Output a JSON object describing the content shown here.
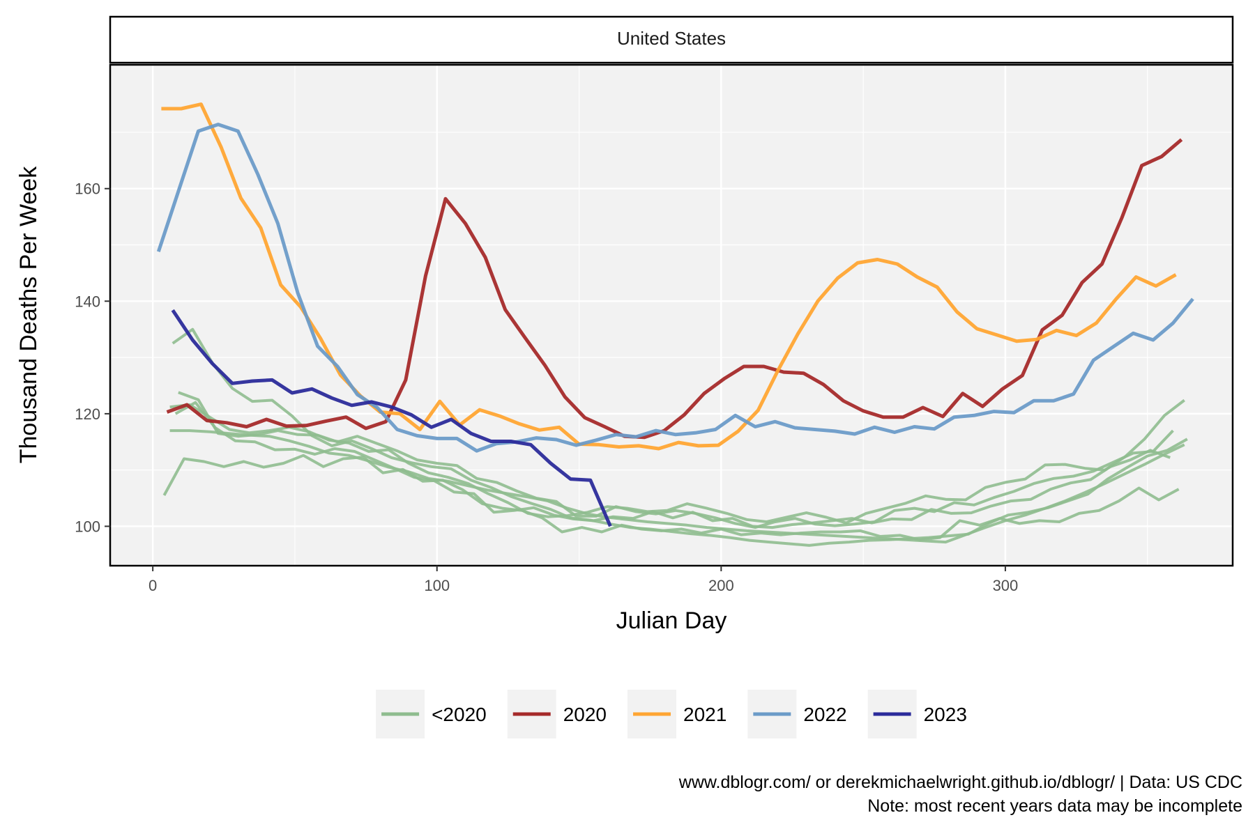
{
  "chart_data": {
    "type": "line",
    "facet_title": "United States",
    "xlabel": "Julian Day",
    "ylabel": "Thousand Deaths Per Week",
    "xlim": [
      -15,
      380
    ],
    "ylim": [
      93,
      182
    ],
    "x_ticks": [
      0,
      100,
      200,
      300
    ],
    "y_ticks": [
      100,
      120,
      140,
      160
    ],
    "grid": true,
    "legend_position": "bottom",
    "colors": {
      "lt2020": "#8fbc8f",
      "y2020": "#a52a2a",
      "y2021": "#ffa533",
      "y2022": "#6b9bc8",
      "y2023": "#2b2b9a",
      "panel_bg": "#f2f2f2",
      "grid": "#ffffff"
    },
    "legend": [
      {
        "label": "<2020",
        "color": "#8fbc8f"
      },
      {
        "label": "2020",
        "color": "#a52a2a"
      },
      {
        "label": "2021",
        "color": "#ffa533"
      },
      {
        "label": "2022",
        "color": "#6b9bc8"
      },
      {
        "label": "2023",
        "color": "#2b2b9a"
      }
    ],
    "series": [
      {
        "legend": "<2020",
        "color": "#8fbc8f",
        "opacity": 0.9,
        "width": 4,
        "x": [
          4,
          11,
          18,
          25,
          32,
          39,
          46,
          53,
          60,
          67,
          74,
          81,
          88,
          95,
          102,
          109,
          116,
          123,
          130,
          137,
          144,
          151,
          158,
          165,
          172,
          179,
          186,
          193,
          200,
          207,
          214,
          221,
          228,
          235,
          242,
          249,
          256,
          263,
          270,
          277,
          284,
          291,
          298,
          305,
          312,
          319,
          326,
          333,
          340,
          347,
          354,
          361
        ],
        "y": [
          105.5,
          112,
          111.5,
          110.6,
          111.5,
          110.5,
          111.2,
          112.6,
          110.6,
          112,
          112.3,
          109.5,
          110.1,
          108,
          108.2,
          106.5,
          104,
          103.2,
          102.8,
          101.5,
          99,
          99.8,
          99,
          100.2,
          99.5,
          99.2,
          99.5,
          98.8,
          99.5,
          98.5,
          98.8,
          98.5,
          98.8,
          99,
          99,
          99.2,
          98.2,
          98.4,
          97.6,
          98,
          101,
          100.2,
          101.4,
          100.5,
          101,
          100.8,
          102.3,
          102.8,
          104.5,
          106.8,
          104.7,
          106.6
        ]
      },
      {
        "legend": "<2020",
        "color": "#8fbc8f",
        "opacity": 0.9,
        "width": 4,
        "x": [
          6,
          13,
          20,
          27,
          34,
          41,
          48,
          55,
          62,
          69,
          76,
          83,
          90,
          97,
          104,
          111,
          118,
          125,
          132,
          139,
          146,
          153,
          160,
          167,
          174,
          181,
          188,
          195,
          202,
          209,
          216,
          223,
          230,
          237,
          244,
          251,
          258,
          265,
          272,
          279,
          286,
          293,
          300,
          307,
          314,
          321,
          328,
          335,
          342,
          349,
          356,
          363
        ],
        "y": [
          117,
          117,
          116.8,
          116.5,
          116.2,
          116,
          115.2,
          114.2,
          113,
          112.6,
          111.6,
          110.5,
          109.7,
          108.5,
          108,
          107.2,
          106.4,
          105.8,
          105.2,
          104.5,
          103.2,
          102.2,
          101.6,
          101.2,
          100.8,
          100.5,
          100.2,
          99.8,
          99.5,
          99.2,
          99,
          98.8,
          98.6,
          98.4,
          98.2,
          98,
          97.8,
          97.6,
          97.4,
          97.2,
          98.5,
          99.8,
          101,
          102,
          103.2,
          104.5,
          106,
          107.6,
          109.3,
          111,
          112.8,
          114.5
        ]
      },
      {
        "legend": "<2020",
        "color": "#8fbc8f",
        "opacity": 0.9,
        "width": 4,
        "x": [
          7,
          14,
          21,
          28,
          35,
          42,
          49,
          56,
          63,
          70,
          77,
          84,
          91,
          98,
          105,
          112,
          119,
          126,
          133,
          140,
          147,
          154,
          161,
          168,
          175,
          182,
          189,
          196,
          203,
          210,
          217,
          224,
          231,
          238,
          245,
          252,
          259,
          266,
          273,
          280,
          287,
          294,
          301,
          308,
          315,
          322,
          329,
          336,
          343,
          350,
          357,
          364
        ],
        "y": [
          132.5,
          135,
          129,
          124.5,
          122.2,
          122.4,
          119.6,
          116.1,
          114.3,
          115.2,
          113.8,
          112.2,
          111.3,
          110.6,
          110.2,
          108.2,
          106.9,
          105.3,
          104.1,
          103,
          101.5,
          101.1,
          100.4,
          99.8,
          99.5,
          99.1,
          98.7,
          98.4,
          98,
          97.5,
          97.2,
          96.9,
          96.6,
          97,
          97.2,
          97.5,
          97.6,
          97.8,
          98,
          98.3,
          98.6,
          100.5,
          102,
          102.5,
          103.3,
          104.5,
          105.7,
          108.4,
          110.5,
          112.5,
          113.5,
          115.5
        ]
      },
      {
        "legend": "<2020",
        "color": "#8fbc8f",
        "opacity": 0.9,
        "width": 4,
        "x": [
          8,
          15,
          22,
          29,
          36,
          43,
          50,
          57,
          64,
          71,
          78,
          85,
          92,
          99,
          106,
          113,
          120,
          127,
          134,
          141,
          148,
          155,
          162,
          169,
          176,
          183,
          190,
          197,
          204,
          211,
          218,
          225,
          232,
          239,
          246,
          253,
          260,
          267,
          274,
          281,
          288,
          295,
          302,
          309,
          316,
          323,
          330,
          337,
          344,
          351,
          358
        ],
        "y": [
          120,
          122,
          117.5,
          115.2,
          115,
          113.6,
          113.7,
          112.8,
          113.8,
          113.3,
          111.8,
          110.3,
          108.7,
          108.1,
          106.1,
          105.8,
          102.5,
          102.8,
          103.3,
          102,
          101.3,
          101,
          101.7,
          101.4,
          102.6,
          101.5,
          102.5,
          101,
          101.4,
          100,
          99.8,
          100.3,
          100.6,
          101,
          101.4,
          100.6,
          101.3,
          101.2,
          103,
          102.3,
          102.4,
          103.6,
          104.5,
          104.8,
          106.6,
          107.7,
          108.3,
          110.6,
          111.8,
          113.5,
          112.2
        ]
      },
      {
        "legend": "<2020",
        "color": "#8fbc8f",
        "opacity": 0.9,
        "width": 4,
        "x": [
          9,
          16,
          23,
          30,
          37,
          44,
          51,
          58,
          65,
          72,
          79,
          86,
          93,
          100,
          107,
          114,
          121,
          128,
          135,
          142,
          149,
          156,
          163,
          170,
          177,
          184,
          191,
          198,
          205,
          212,
          219,
          226,
          233,
          240,
          247,
          254,
          261,
          268,
          275,
          282,
          289,
          296,
          303,
          310,
          317,
          324,
          331,
          338,
          345,
          352,
          359
        ],
        "y": [
          123.8,
          122.5,
          116.5,
          116,
          116.3,
          117,
          116.3,
          116.2,
          115,
          116,
          114.7,
          113.4,
          111.8,
          111.2,
          110.8,
          108.5,
          107.8,
          106.3,
          105,
          104.4,
          101.8,
          101.8,
          103.5,
          102.6,
          102.2,
          102.8,
          102.3,
          101.5,
          100.5,
          99.8,
          100.8,
          101.4,
          100.4,
          100.1,
          100.4,
          100.8,
          102.8,
          103.2,
          102.6,
          104.2,
          103.8,
          105.1,
          106.2,
          107.6,
          108.5,
          108.9,
          109.8,
          111.4,
          113,
          113.3,
          117
        ]
      },
      {
        "legend": "<2020",
        "color": "#8fbc8f",
        "opacity": 0.9,
        "width": 4,
        "x": [
          6,
          13,
          20,
          27,
          34,
          41,
          48,
          55,
          62,
          69,
          76,
          83,
          90,
          97,
          104,
          111,
          118,
          125,
          132,
          139,
          146,
          153,
          160,
          167,
          174,
          181,
          188,
          195,
          202,
          209,
          216,
          223,
          230,
          237,
          244,
          251,
          258,
          265,
          272,
          279,
          286,
          293,
          300,
          307,
          314,
          321,
          328,
          335,
          342,
          349,
          356,
          363
        ],
        "y": [
          121.2,
          121.6,
          119.4,
          117.2,
          116.6,
          117,
          117.6,
          116.8,
          115.3,
          114.8,
          113.3,
          113.6,
          111.2,
          109.5,
          108.7,
          107.6,
          105.8,
          104.2,
          102.3,
          101.7,
          101.9,
          102.5,
          103.5,
          103.2,
          102.6,
          102.8,
          104,
          103.2,
          102.3,
          101.2,
          100.8,
          101.6,
          102.4,
          101.6,
          100.6,
          102.3,
          103.2,
          104.1,
          105.4,
          104.8,
          104.7,
          106.9,
          107.8,
          108.4,
          110.9,
          111,
          110.3,
          110,
          112.3,
          115.5,
          119.7,
          122.4
        ]
      },
      {
        "legend": "2020",
        "color": "#a52a2a",
        "opacity": 0.95,
        "width": 5,
        "x": [
          5,
          12,
          19,
          26,
          33,
          40,
          47,
          54,
          61,
          68,
          75,
          82,
          89,
          96,
          103,
          110,
          117,
          124,
          131,
          138,
          145,
          152,
          159,
          166,
          173,
          180,
          187,
          194,
          201,
          208,
          215,
          222,
          229,
          236,
          243,
          250,
          257,
          264,
          271,
          278,
          285,
          292,
          299,
          306,
          313,
          320,
          327,
          334,
          341,
          348,
          355,
          362
        ],
        "y": [
          120.3,
          121.6,
          118.8,
          118.4,
          117.7,
          119,
          117.8,
          117.9,
          118.7,
          119.4,
          117.4,
          118.6,
          126,
          144.5,
          158.2,
          153.8,
          147.8,
          138.5,
          133.5,
          128.6,
          123,
          119.3,
          117.7,
          116,
          115.8,
          117,
          119.8,
          123.6,
          126.2,
          128.4,
          128.4,
          127.4,
          127.2,
          125.2,
          122.3,
          120.5,
          119.4,
          119.4,
          121.1,
          119.5,
          123.6,
          121.3,
          124.4,
          126.8,
          134.9,
          137.5,
          143.3,
          146.6,
          154.8,
          164.1,
          165.7,
          168.7
        ]
      },
      {
        "legend": "2021",
        "color": "#ffa533",
        "opacity": 0.95,
        "width": 5,
        "x": [
          3,
          10,
          17,
          24,
          31,
          38,
          45,
          52,
          59,
          66,
          73,
          80,
          87,
          94,
          101,
          108,
          115,
          122,
          129,
          136,
          143,
          150,
          157,
          164,
          171,
          178,
          185,
          192,
          199,
          206,
          213,
          220,
          227,
          234,
          241,
          248,
          255,
          262,
          269,
          276,
          283,
          290,
          297,
          304,
          311,
          318,
          325,
          332,
          339,
          346,
          353,
          360
        ],
        "y": [
          174.2,
          174.2,
          175,
          167.4,
          158.3,
          153,
          142.9,
          139,
          133.4,
          126.9,
          123.2,
          120.3,
          120,
          117.2,
          122.2,
          118,
          120.7,
          119.6,
          118.2,
          117.1,
          117.6,
          114.6,
          114.5,
          114.1,
          114.3,
          113.8,
          114.9,
          114.3,
          114.4,
          116.9,
          120.6,
          127.7,
          134.2,
          140,
          144.1,
          146.8,
          147.4,
          146.6,
          144.3,
          142.5,
          138.1,
          135.1,
          134,
          132.9,
          133.2,
          134.8,
          133.9,
          136.1,
          140.4,
          144.3,
          142.7,
          144.7
        ]
      },
      {
        "legend": "2022",
        "color": "#6b9bc8",
        "opacity": 0.95,
        "width": 5,
        "x": [
          2,
          9,
          16,
          23,
          30,
          37,
          44,
          51,
          58,
          65,
          72,
          79,
          86,
          93,
          100,
          107,
          114,
          121,
          128,
          135,
          142,
          149,
          156,
          163,
          170,
          177,
          184,
          191,
          198,
          205,
          212,
          219,
          226,
          233,
          240,
          247,
          254,
          261,
          268,
          275,
          282,
          289,
          296,
          303,
          310,
          317,
          324,
          331,
          338,
          345,
          352,
          359,
          366
        ],
        "y": [
          148.8,
          159.5,
          170.2,
          171.4,
          170.2,
          162.5,
          153.8,
          141.5,
          132,
          128.4,
          123.4,
          121.1,
          117.2,
          116.1,
          115.6,
          115.6,
          113.4,
          114.7,
          115,
          115.7,
          115.4,
          114.4,
          115.3,
          116.3,
          115.9,
          117,
          116.3,
          116.6,
          117.2,
          119.7,
          117.7,
          118.6,
          117.5,
          117.2,
          116.9,
          116.4,
          117.6,
          116.7,
          117.7,
          117.3,
          119.4,
          119.7,
          120.4,
          120.2,
          122.3,
          122.3,
          123.5,
          129.5,
          131.9,
          134.3,
          133.1,
          136.1,
          140.4
        ]
      },
      {
        "legend": "2023",
        "color": "#2b2b9a",
        "opacity": 0.95,
        "width": 5,
        "x": [
          7,
          14,
          21,
          28,
          35,
          42,
          49,
          56,
          63,
          70,
          77,
          84,
          91,
          98,
          105,
          112,
          119,
          126,
          133,
          140,
          147,
          154,
          161
        ],
        "y": [
          138.4,
          133.1,
          128.9,
          125.4,
          125.8,
          126,
          123.7,
          124.4,
          122.8,
          121.5,
          122.1,
          121.2,
          119.8,
          117.6,
          119,
          116.5,
          115.1,
          115.1,
          114.5,
          111.2,
          108.4,
          108.2,
          100
        ]
      }
    ]
  },
  "caption": {
    "line1": "www.dblogr.com/ or derekmichaelwright.github.io/dblogr/ | Data: US CDC",
    "line2": "Note: most recent years data may be incomplete"
  }
}
